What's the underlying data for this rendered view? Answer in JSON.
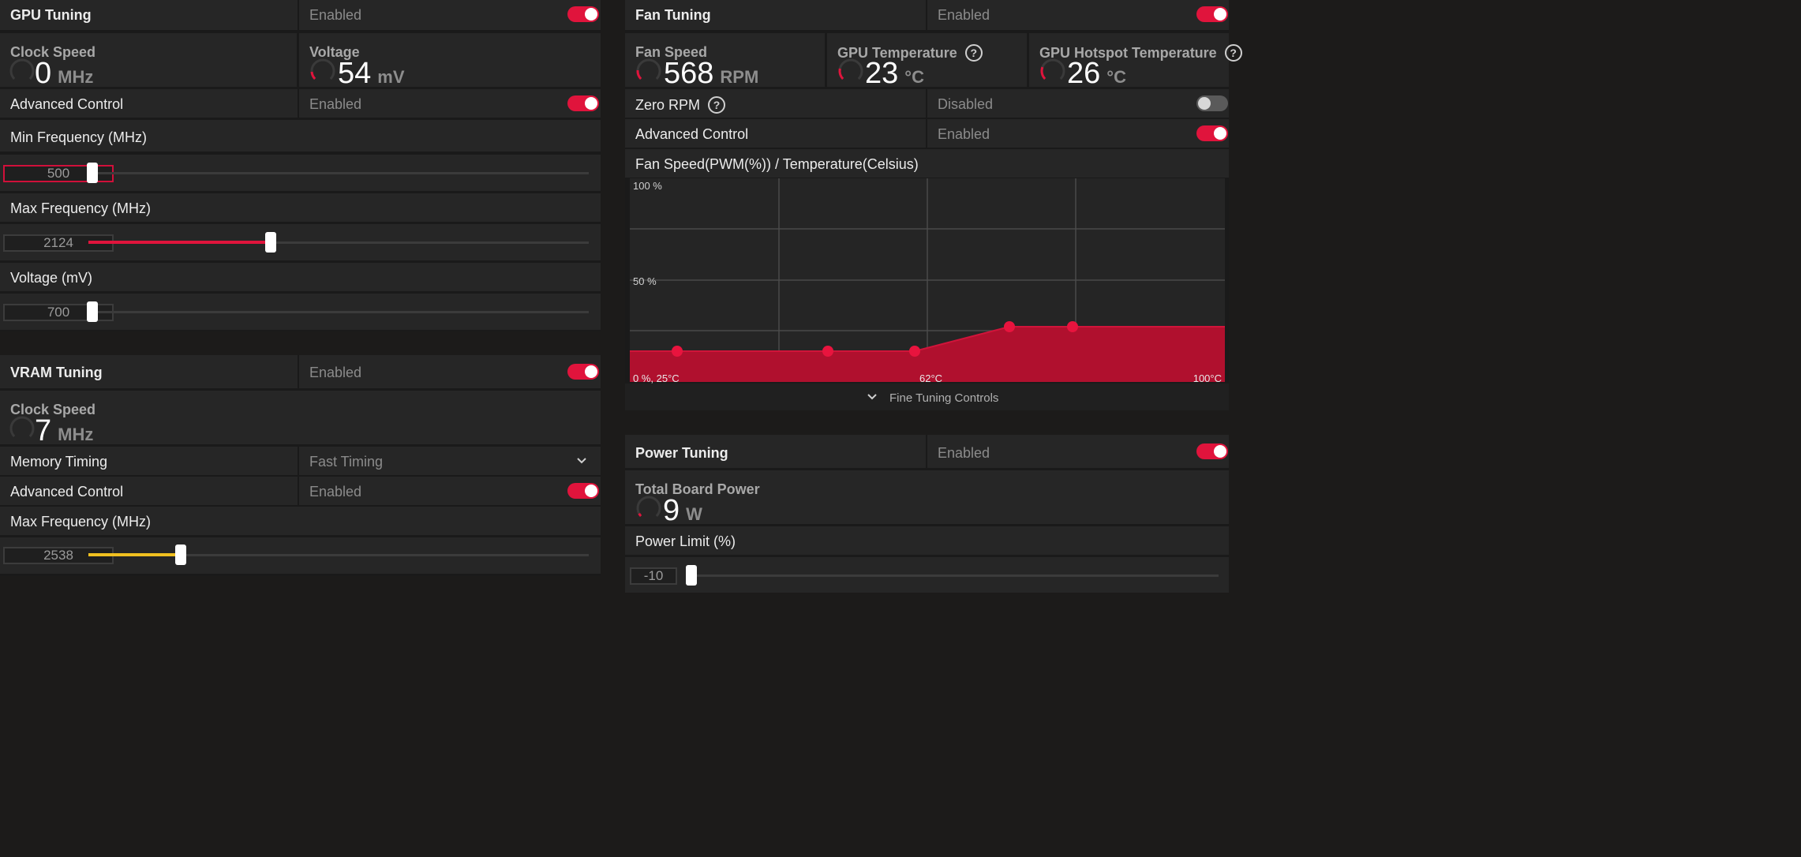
{
  "gpu_tuning": {
    "title": "GPU Tuning",
    "status": "Enabled",
    "clock_speed": {
      "title": "Clock Speed",
      "value": "0",
      "unit": "MHz"
    },
    "voltage": {
      "title": "Voltage",
      "value": "54",
      "unit": "mV"
    },
    "advanced_control": {
      "label": "Advanced Control",
      "status": "Enabled"
    },
    "min_frequency": {
      "label": "Min Frequency (MHz)",
      "value": "500",
      "fraction": 0.0
    },
    "max_frequency": {
      "label": "Max Frequency (MHz)",
      "value": "2124",
      "fraction": 0.36
    },
    "voltage_slider": {
      "label": "Voltage (mV)",
      "value": "700",
      "fraction": 0.0
    }
  },
  "vram_tuning": {
    "title": "VRAM Tuning",
    "status": "Enabled",
    "clock_speed": {
      "title": "Clock Speed",
      "value": "7",
      "unit": "MHz"
    },
    "memory_timing": {
      "label": "Memory Timing",
      "value": "Fast Timing"
    },
    "advanced_control": {
      "label": "Advanced Control",
      "status": "Enabled"
    },
    "max_frequency": {
      "label": "Max Frequency (MHz)",
      "value": "2538",
      "fraction": 0.18
    }
  },
  "fan_tuning": {
    "title": "Fan Tuning",
    "status": "Enabled",
    "fan_speed": {
      "title": "Fan Speed",
      "value": "568",
      "unit": "RPM"
    },
    "gpu_temperature": {
      "title": "GPU Temperature",
      "value": "23",
      "unit": "°C"
    },
    "hotspot_temperature": {
      "title": "GPU Hotspot Temperature",
      "value": "26",
      "unit": "°C"
    },
    "zero_rpm": {
      "label": "Zero RPM",
      "status": "Disabled"
    },
    "advanced_control": {
      "label": "Advanced Control",
      "status": "Enabled"
    },
    "curve": {
      "title": "Fan Speed(PWM(%)) / Temperature(Celsius)",
      "y_top_label": "100 %",
      "y_mid_label": "50 %",
      "x_start_label": "0 %, 25°C",
      "x_mid_label": "62°C",
      "x_end_label": "100°C"
    },
    "fine_tuning_label": "Fine Tuning Controls"
  },
  "power_tuning": {
    "title": "Power Tuning",
    "status": "Enabled",
    "total_board_power": {
      "title": "Total Board Power",
      "value": "9",
      "unit": "W"
    },
    "power_limit": {
      "label": "Power Limit (%)",
      "value": "-10",
      "fraction": 0.0
    }
  },
  "colors": {
    "accent_red": "#e0143c",
    "accent_yellow": "#f0c020",
    "background": "#1c1b1a"
  }
}
